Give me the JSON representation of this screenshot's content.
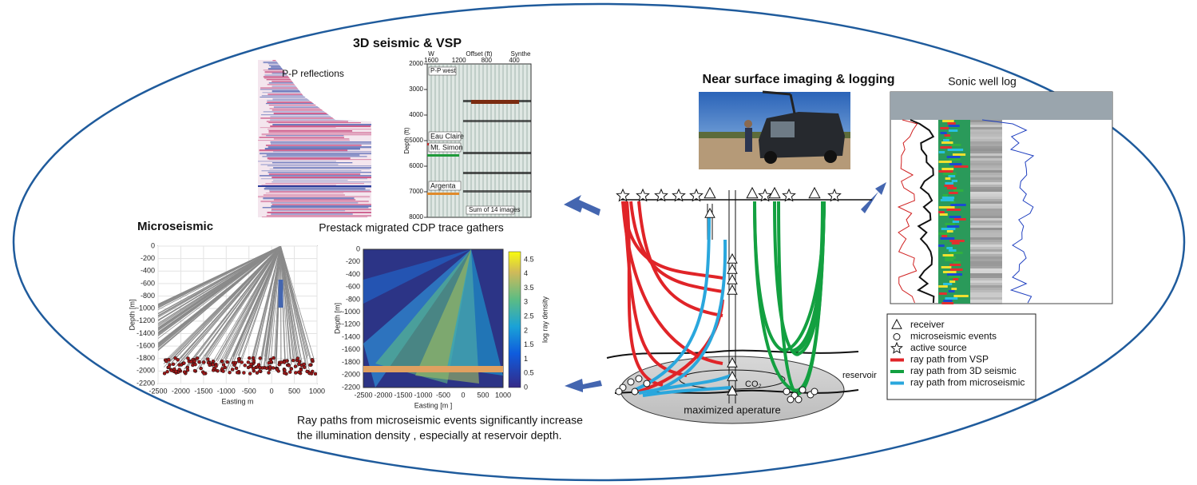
{
  "panels": {
    "seismic_vsp": {
      "title": "3D seismic & VSP",
      "reflections_label": "P-P reflections",
      "gather": {
        "offset_label": "Offset (ft)",
        "direction": "W",
        "synthetic": "Synthe",
        "offset_ticks": [
          1600,
          1200,
          800,
          400
        ],
        "depth_label": "Depth (ft)",
        "depth_ticks": [
          2000,
          3000,
          4000,
          5000,
          6000,
          7000,
          8000
        ],
        "profile": "P-P west",
        "horizons": [
          "Eau Claire",
          "Mt. Simon",
          "Argenta"
        ],
        "stack_note": "Sum of 14 images"
      },
      "caption": "Prestack migrated CDP trace gathers"
    },
    "near_surface": {
      "title": "Near surface imaging & logging",
      "log_title": "Sonic well log"
    },
    "microseismic": {
      "title": "Microseismic",
      "plots": [
        {
          "y_label": "Depth [m]",
          "x_label": "Easting m",
          "yticks": [
            0,
            -200,
            -400,
            -600,
            -800,
            -1000,
            -1200,
            -1400,
            -1600,
            -1800,
            -2000,
            -2200
          ],
          "xticks": [
            -2500,
            -2000,
            -1500,
            -1000,
            -500,
            0,
            500,
            1000
          ]
        },
        {
          "y_label": "Depth [m]",
          "x_label": "Easting [m ]",
          "yticks": [
            0,
            -200,
            -400,
            -600,
            -800,
            -1000,
            -1200,
            -1400,
            -1600,
            -1800,
            -2000,
            -2200
          ],
          "xticks": [
            -2500,
            -2000,
            -1500,
            -1000,
            -500,
            0,
            500,
            1000
          ],
          "colorbar_label": "log ray density",
          "colorbar_ticks": [
            0,
            0.5,
            1,
            1.5,
            2,
            2.5,
            3,
            3.5,
            4,
            4.5
          ]
        }
      ],
      "caption": [
        "Ray paths from microseismic events significantly increase",
        "the illumination density , especially at reservoir depth."
      ]
    },
    "schematic": {
      "co2": "CO₂",
      "reservoir": "reservoir",
      "aperture": "maximized aperature",
      "legend": [
        "receiver",
        "microseismic events",
        "active source",
        "ray path from VSP",
        "ray path from 3D seismic",
        "ray path from microseismic"
      ]
    }
  }
}
